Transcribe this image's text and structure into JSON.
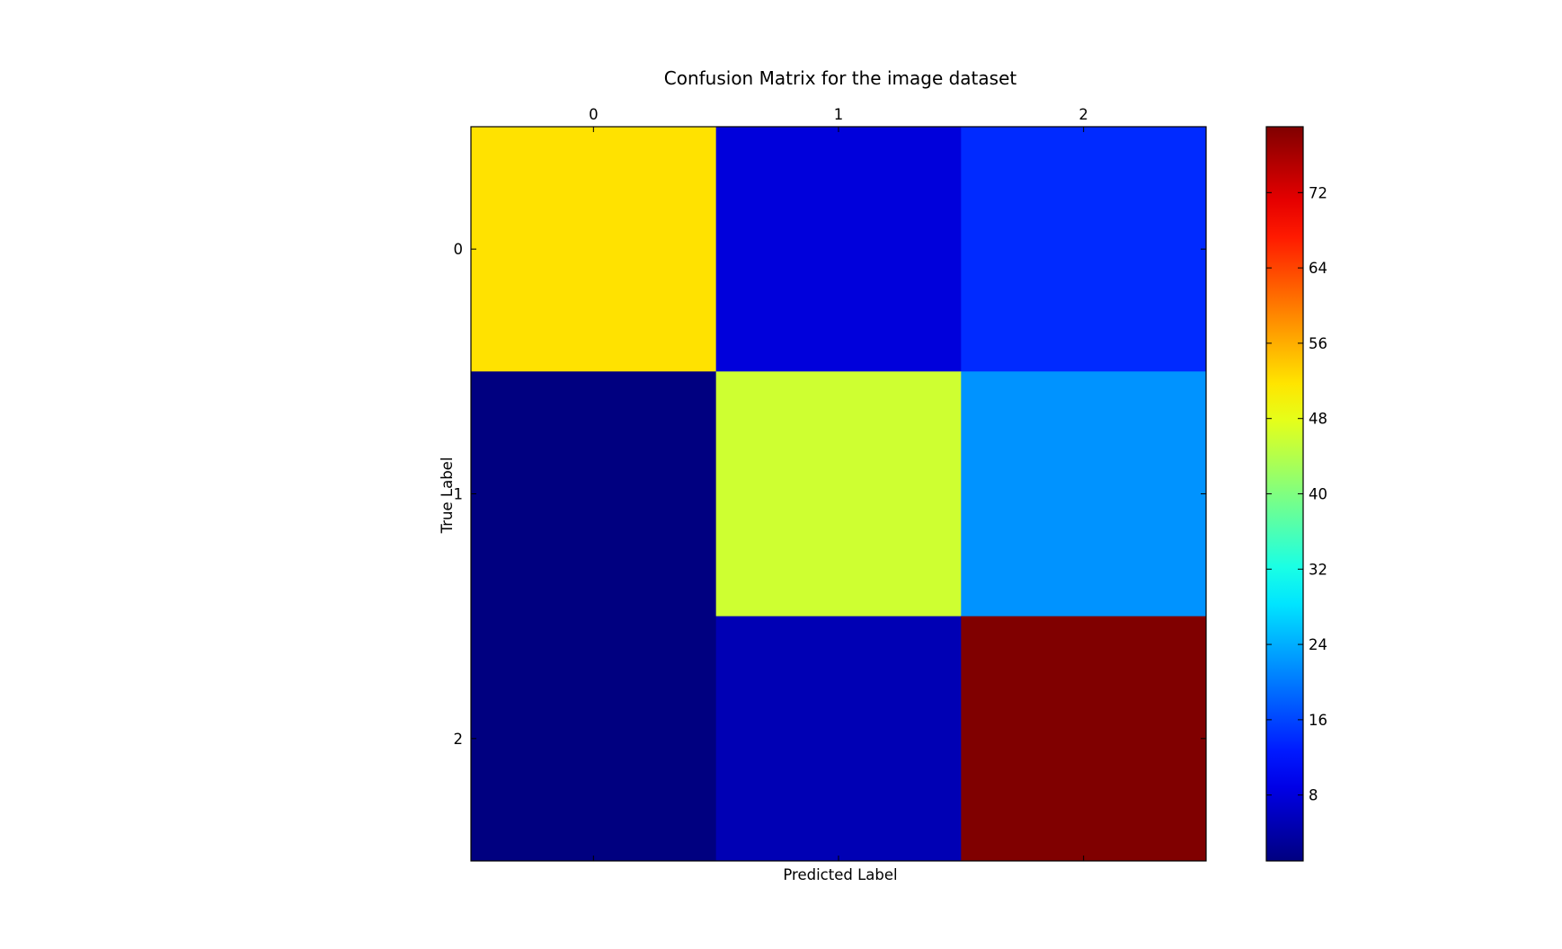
{
  "chart_data": {
    "type": "heatmap",
    "title": "Confusion Matrix for the image dataset",
    "xlabel": "Predicted Label",
    "ylabel": "True Label",
    "x_categories": [
      "0",
      "1",
      "2"
    ],
    "y_categories": [
      "0",
      "1",
      "2"
    ],
    "matrix": [
      [
        52,
        8,
        14
      ],
      [
        1,
        46,
        22
      ],
      [
        1,
        5,
        79
      ]
    ],
    "colormap": "jet",
    "colorbar": {
      "vmin": 1,
      "vmax": 79,
      "ticks": [
        8,
        16,
        24,
        32,
        40,
        48,
        56,
        64,
        72
      ]
    },
    "x_tick_position": "top",
    "grid": false
  }
}
